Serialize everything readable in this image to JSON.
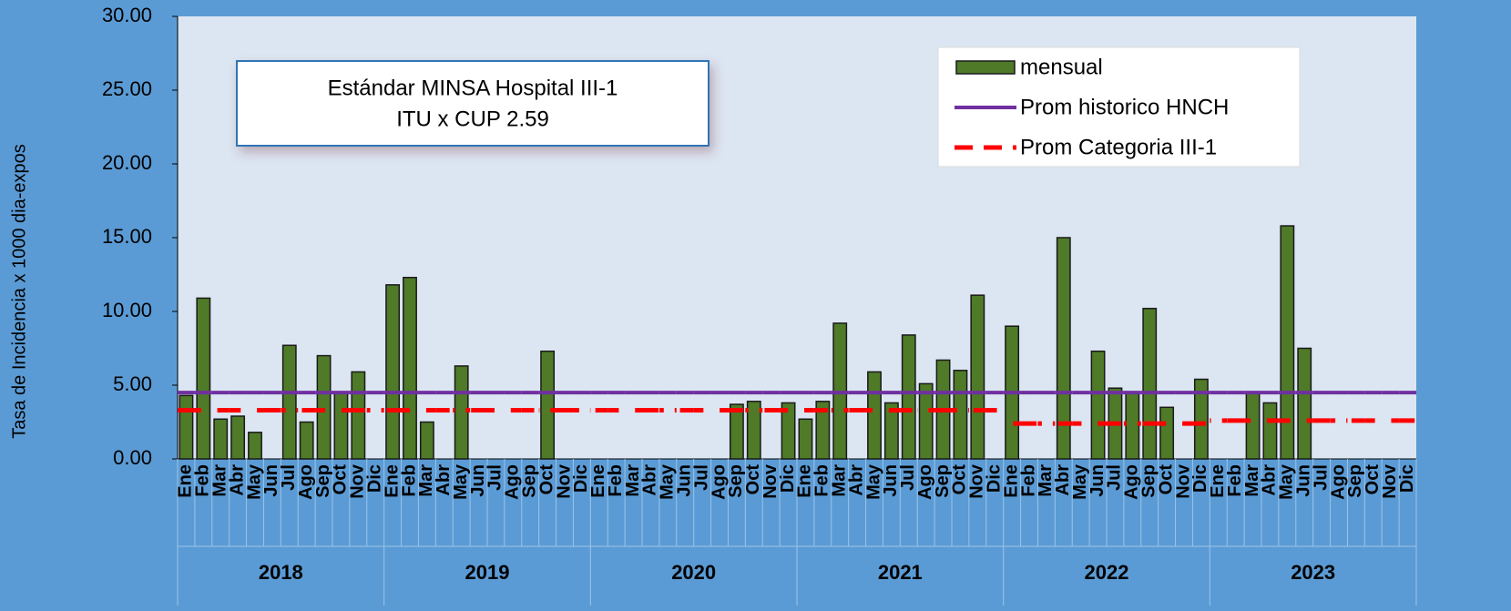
{
  "chart_data": {
    "type": "bar",
    "y_label": "Tasa de Incidencia x 1000 dia-expos",
    "annotation": [
      "Estándar MINSA Hospital III-1",
      "ITU x CUP  2.59"
    ],
    "years": [
      "2018",
      "2019",
      "2020",
      "2021",
      "2022",
      "2023"
    ],
    "categories": [
      "Ene",
      "Feb",
      "Mar",
      "Abr",
      "May",
      "Jun",
      "Jul",
      "Ago",
      "Sep",
      "Oct",
      "Nov",
      "Dic",
      "Ene",
      "Feb",
      "Mar",
      "Abr",
      "May",
      "Jun",
      "Jul",
      "Ago",
      "Sep",
      "Oct",
      "Nov",
      "Dic",
      "Ene",
      "Feb",
      "Mar",
      "Abr",
      "May",
      "Jun",
      "Jul",
      "Ago",
      "Sep",
      "Oct",
      "Nov",
      "Dic",
      "Ene",
      "Feb",
      "Mar",
      "Abr",
      "May",
      "Jun",
      "Jul",
      "Ago",
      "Sep",
      "Oct",
      "Nov",
      "Dic",
      "Ene",
      "Feb",
      "Mar",
      "Abr",
      "May",
      "Jun",
      "Jul",
      "Ago",
      "Sep",
      "Oct",
      "Nov",
      "Dic",
      "Ene",
      "Feb",
      "Mar",
      "Abr",
      "May",
      "Jun",
      "Jul",
      "Ago",
      "Sep",
      "Oct",
      "Nov",
      "Dic"
    ],
    "series": [
      {
        "name": "mensual",
        "type": "bar",
        "color": "#4f7a28",
        "values": [
          4.3,
          10.9,
          2.7,
          2.9,
          1.8,
          null,
          7.7,
          2.5,
          7.0,
          4.5,
          5.9,
          null,
          11.8,
          12.3,
          2.5,
          null,
          6.3,
          null,
          null,
          null,
          null,
          7.3,
          null,
          null,
          null,
          null,
          null,
          null,
          null,
          null,
          null,
          null,
          3.7,
          3.9,
          null,
          3.8,
          2.7,
          3.9,
          9.2,
          null,
          5.9,
          3.8,
          8.4,
          5.1,
          6.7,
          6.0,
          11.1,
          null,
          9.0,
          null,
          null,
          15.0,
          null,
          7.3,
          4.8,
          4.5,
          10.2,
          3.5,
          null,
          5.4,
          null,
          null,
          4.5,
          3.8,
          15.8,
          7.5,
          null,
          null,
          null,
          null,
          null,
          null
        ]
      },
      {
        "name": "Prom historico HNCH",
        "type": "line",
        "color": "#7030a0",
        "dash": false,
        "values": [
          4.5,
          4.5,
          4.5,
          4.5,
          4.5,
          4.5,
          4.5,
          4.5,
          4.5,
          4.5,
          4.5,
          4.5,
          4.5,
          4.5,
          4.5,
          4.5,
          4.5,
          4.5,
          4.5,
          4.5,
          4.5,
          4.5,
          4.5,
          4.5,
          4.5,
          4.5,
          4.5,
          4.5,
          4.5,
          4.5,
          4.5,
          4.5,
          4.5,
          4.5,
          4.5,
          4.5,
          4.5,
          4.5,
          4.5,
          4.5,
          4.5,
          4.5,
          4.5,
          4.5,
          4.5,
          4.5,
          4.5,
          4.5,
          4.5,
          4.5,
          4.5,
          4.5,
          4.5,
          4.5,
          4.5,
          4.5,
          4.5,
          4.5,
          4.5,
          4.5,
          4.5,
          4.5,
          4.5,
          4.5,
          4.5,
          4.5,
          4.5,
          4.5,
          4.5,
          4.5,
          4.5,
          4.5
        ]
      },
      {
        "name": "Prom Categoria III-1",
        "type": "line",
        "color": "#ff0000",
        "dash": true,
        "values": [
          3.3,
          3.3,
          3.3,
          3.3,
          3.3,
          3.3,
          3.3,
          3.3,
          3.3,
          3.3,
          3.3,
          3.3,
          3.3,
          3.3,
          3.3,
          3.3,
          3.3,
          3.3,
          3.3,
          3.3,
          3.3,
          3.3,
          3.3,
          3.3,
          3.3,
          3.3,
          3.3,
          3.3,
          3.3,
          3.3,
          3.3,
          3.3,
          3.3,
          3.3,
          3.3,
          3.3,
          3.3,
          3.3,
          3.3,
          3.3,
          3.3,
          3.3,
          3.3,
          3.3,
          3.3,
          3.3,
          3.3,
          3.3,
          2.4,
          2.4,
          2.4,
          2.4,
          2.4,
          2.4,
          2.4,
          2.4,
          2.4,
          2.4,
          2.4,
          2.4,
          2.6,
          2.6,
          2.6,
          2.6,
          2.6,
          2.6,
          2.6,
          2.6,
          2.6,
          2.6,
          2.6,
          2.6
        ]
      }
    ],
    "ylim": [
      0,
      30
    ],
    "yticks": [
      {
        "value": 0,
        "label": "0.00"
      },
      {
        "value": 5,
        "label": "5.00"
      },
      {
        "value": 10,
        "label": "10.00"
      },
      {
        "value": 15,
        "label": "15.00"
      },
      {
        "value": 20,
        "label": "20.00"
      },
      {
        "value": 25,
        "label": "25.00"
      },
      {
        "value": 30,
        "label": "30.00"
      }
    ],
    "legend": "upper right"
  }
}
